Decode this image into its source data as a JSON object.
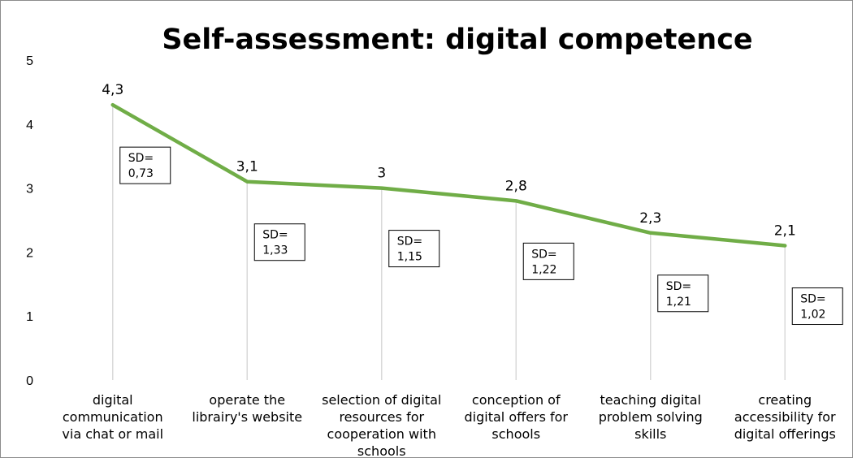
{
  "chart_data": {
    "type": "line",
    "title": "Self-assessment: digital competence",
    "xlabel": "",
    "ylabel": "",
    "ylim": [
      0,
      5
    ],
    "yticks": [
      "0",
      "1",
      "2",
      "3",
      "4",
      "5"
    ],
    "grid": false,
    "drop_lines": true,
    "line_color": "#70ad47",
    "drop_line_color": "#d9d9d9",
    "categories": [
      [
        "digital",
        "communication",
        "via chat or mail"
      ],
      [
        "operate the",
        "librairy's website"
      ],
      [
        "selection of digital",
        "resources for",
        "cooperation with",
        "schools"
      ],
      [
        "conception of",
        "digital offers for",
        "schools"
      ],
      [
        "teaching digital",
        "problem solving",
        "skills"
      ],
      [
        "creating",
        "accessibility for",
        "digital offerings"
      ]
    ],
    "values": [
      4.3,
      3.1,
      3.0,
      2.8,
      2.3,
      2.1
    ],
    "value_labels": [
      "4,3",
      "3,1",
      "3",
      "2,8",
      "2,3",
      "2,1"
    ],
    "annotations": [
      [
        "SD=",
        "0,73"
      ],
      [
        "SD=",
        "1,33"
      ],
      [
        "SD=",
        "1,15"
      ],
      [
        "SD=",
        "1,22"
      ],
      [
        "SD=",
        "1,21"
      ],
      [
        "SD=",
        "1,02"
      ]
    ]
  }
}
